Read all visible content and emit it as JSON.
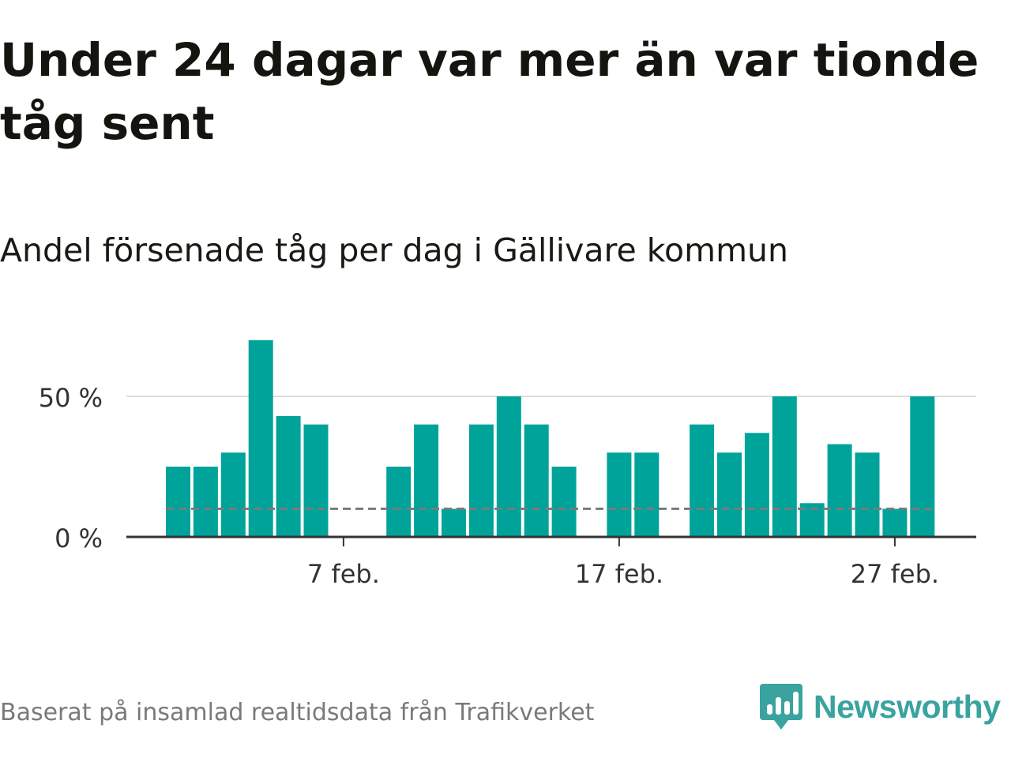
{
  "title": "Under 24 dagar var mer än var tionde tåg sent",
  "subtitle": "Andel försenade tåg per dag i Gällivare kommun",
  "footer": {
    "source": "Baserat på insamlad realtidsdata från Trafikverket",
    "brand": "Newsworthy"
  },
  "colors": {
    "bar": "#00a39a",
    "reference_line": "#7a7a7a",
    "gridline": "#dddddd",
    "axis": "#333333",
    "brand": "#3aa3a0",
    "footer_text": "#7a7a7a"
  },
  "chart_data": {
    "type": "bar",
    "x_unit": "day (February)",
    "x": [
      1,
      2,
      3,
      4,
      5,
      6,
      7,
      8,
      9,
      10,
      11,
      12,
      13,
      14,
      15,
      16,
      17,
      18,
      19,
      20,
      21,
      22,
      23,
      24,
      25,
      26,
      27,
      28
    ],
    "values": [
      25,
      25,
      30,
      70,
      43,
      40,
      null,
      null,
      25,
      40,
      10,
      40,
      50,
      40,
      25,
      null,
      30,
      30,
      null,
      40,
      30,
      37,
      50,
      12,
      33,
      30,
      10,
      50
    ],
    "ylim": [
      0,
      75
    ],
    "yticks": [
      0,
      50
    ],
    "ytick_labels": [
      "0 %",
      "50 %"
    ],
    "xticks": [
      7,
      17,
      27
    ],
    "xtick_labels": [
      "7 feb.",
      "17 feb.",
      "27 feb."
    ],
    "reference_value": 10,
    "reference_style": "dashed",
    "grid": "horizontal",
    "legend": "none"
  }
}
